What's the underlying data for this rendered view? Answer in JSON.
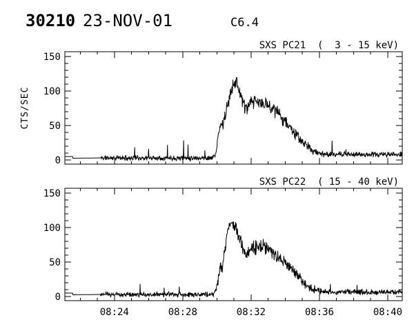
{
  "header": {
    "flare_id": "30210",
    "date": "23-NOV-01",
    "goes_class": "C6.4"
  },
  "colors": {
    "foreground": "#000000",
    "background": "#ffffff"
  },
  "chart_data": [
    {
      "type": "line",
      "id": "sxs-pc21",
      "title": "SXS PC21  (  3 - 15 keV)",
      "ylabel": "CTS/SEC",
      "x_unit": "minutes after 08:00 UT",
      "xlim": [
        21.1,
        40.85
      ],
      "ylim": [
        -6,
        157
      ],
      "x_major_ticks": [
        {
          "t": 24,
          "label": "08:24"
        },
        {
          "t": 28,
          "label": "08:28"
        },
        {
          "t": 32,
          "label": "08:32"
        },
        {
          "t": 36,
          "label": "08:36"
        },
        {
          "t": 40,
          "label": "08:40"
        }
      ],
      "x_minor_step": 1,
      "y_major_ticks": [
        0,
        50,
        100,
        150
      ],
      "y_minor_step": 10,
      "grid": false,
      "seed": 11,
      "envelope": [
        [
          21.1,
          5
        ],
        [
          21.55,
          5
        ],
        [
          21.57,
          2.5
        ],
        [
          23.2,
          3
        ],
        [
          29.75,
          3
        ],
        [
          29.95,
          10
        ],
        [
          30.1,
          38
        ],
        [
          30.2,
          50
        ],
        [
          30.35,
          52
        ],
        [
          30.55,
          70
        ],
        [
          30.75,
          92
        ],
        [
          30.95,
          113
        ],
        [
          31.1,
          114
        ],
        [
          31.3,
          103
        ],
        [
          31.5,
          86
        ],
        [
          31.65,
          74
        ],
        [
          31.85,
          78
        ],
        [
          32.1,
          84
        ],
        [
          32.4,
          84
        ],
        [
          32.7,
          81
        ],
        [
          33.0,
          80
        ],
        [
          33.3,
          75
        ],
        [
          33.6,
          67
        ],
        [
          33.9,
          59
        ],
        [
          34.15,
          52
        ],
        [
          34.45,
          42
        ],
        [
          34.75,
          33
        ],
        [
          35.05,
          25
        ],
        [
          35.35,
          19
        ],
        [
          35.65,
          13
        ],
        [
          35.95,
          10
        ],
        [
          36.4,
          8
        ],
        [
          37.0,
          8
        ],
        [
          40.85,
          8
        ]
      ],
      "noise": [
        [
          21.1,
          0
        ],
        [
          23.18,
          0
        ],
        [
          23.22,
          3.2
        ],
        [
          29.8,
          3.2
        ],
        [
          30.3,
          7
        ],
        [
          30.8,
          9
        ],
        [
          31.2,
          10
        ],
        [
          31.8,
          9
        ],
        [
          32.5,
          9
        ],
        [
          33.5,
          8.5
        ],
        [
          34.5,
          7
        ],
        [
          35.5,
          5
        ],
        [
          36.2,
          3.5
        ],
        [
          40.85,
          3.2
        ]
      ],
      "spikes": [
        [
          25.18,
          18
        ],
        [
          26.0,
          12
        ],
        [
          27.1,
          17
        ],
        [
          28.05,
          24
        ],
        [
          28.3,
          20
        ],
        [
          29.3,
          10
        ],
        [
          36.75,
          17
        ],
        [
          37.55,
          9
        ]
      ]
    },
    {
      "type": "line",
      "id": "sxs-pc22",
      "title": "SXS PC22  ( 15 - 40 keV)",
      "ylabel": "",
      "x_unit": "minutes after 08:00 UT",
      "xlim": [
        21.1,
        40.85
      ],
      "ylim": [
        -6,
        157
      ],
      "x_major_ticks": [
        {
          "t": 24,
          "label": "08:24"
        },
        {
          "t": 28,
          "label": "08:28"
        },
        {
          "t": 32,
          "label": "08:32"
        },
        {
          "t": 36,
          "label": "08:36"
        },
        {
          "t": 40,
          "label": "08:40"
        }
      ],
      "x_minor_step": 1,
      "y_major_ticks": [
        0,
        50,
        100,
        150
      ],
      "y_minor_step": 10,
      "grid": false,
      "seed": 23,
      "envelope": [
        [
          21.1,
          5
        ],
        [
          21.55,
          5
        ],
        [
          21.57,
          2.5
        ],
        [
          23.2,
          3
        ],
        [
          29.85,
          3
        ],
        [
          30.05,
          20
        ],
        [
          30.2,
          42
        ],
        [
          30.3,
          38
        ],
        [
          30.5,
          75
        ],
        [
          30.7,
          105
        ],
        [
          30.9,
          108
        ],
        [
          31.05,
          98
        ],
        [
          31.25,
          88
        ],
        [
          31.5,
          70
        ],
        [
          31.7,
          62
        ],
        [
          31.95,
          68
        ],
        [
          32.3,
          72
        ],
        [
          32.7,
          74
        ],
        [
          33.0,
          67
        ],
        [
          33.35,
          60
        ],
        [
          33.7,
          55
        ],
        [
          34.0,
          50
        ],
        [
          34.35,
          40
        ],
        [
          34.7,
          30
        ],
        [
          35.05,
          21
        ],
        [
          35.4,
          14
        ],
        [
          35.75,
          10
        ],
        [
          36.2,
          7
        ],
        [
          40.85,
          6.5
        ]
      ],
      "noise": [
        [
          21.1,
          0
        ],
        [
          23.18,
          0
        ],
        [
          23.22,
          3.2
        ],
        [
          29.9,
          3.2
        ],
        [
          30.4,
          8
        ],
        [
          30.9,
          10
        ],
        [
          31.3,
          9
        ],
        [
          32.0,
          9
        ],
        [
          33.0,
          8.5
        ],
        [
          34.0,
          8
        ],
        [
          34.8,
          6.5
        ],
        [
          35.6,
          5
        ],
        [
          36.3,
          3.5
        ],
        [
          40.85,
          3.2
        ]
      ],
      "spikes": [
        [
          25.5,
          12
        ],
        [
          26.9,
          10
        ],
        [
          27.8,
          13
        ],
        [
          36.65,
          12
        ],
        [
          38.2,
          8
        ]
      ]
    }
  ]
}
